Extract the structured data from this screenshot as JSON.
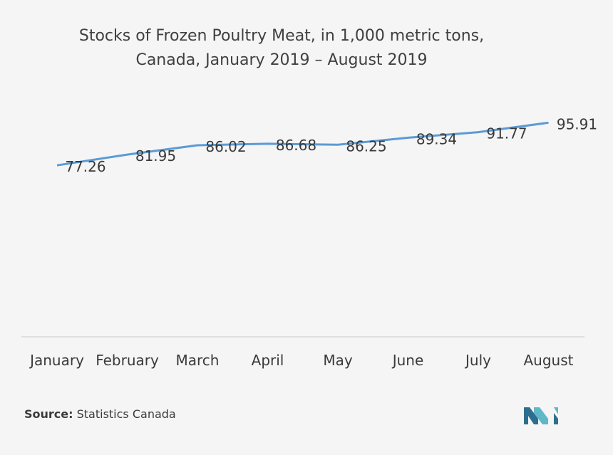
{
  "chart_data": {
    "type": "line",
    "title_line1": "Stocks of Frozen Poultry Meat, in  1,000 metric tons,",
    "title_line2": "Canada, January 2019 – August 2019",
    "categories": [
      "January",
      "February",
      "March",
      "April",
      "May",
      "June",
      "July",
      "August"
    ],
    "values": [
      77.26,
      81.95,
      86.02,
      86.68,
      86.25,
      89.34,
      91.77,
      95.91
    ],
    "value_labels": [
      "77.26",
      "81.95",
      "86.02",
      "86.68",
      "86.25",
      "89.34",
      "91.77",
      "95.91"
    ],
    "xlabel": "",
    "ylabel": "",
    "ylim": [
      0,
      100
    ],
    "grid": false,
    "legend": "none",
    "line_color": "#5b9bd5"
  },
  "source": {
    "label": "Source:",
    "text": " Statistics Canada"
  },
  "colors": {
    "background": "#f5f5f5",
    "axis": "#d8d8d8",
    "text": "#3a3a3a",
    "logo_dark": "#2d6e8e",
    "logo_light": "#5fb8c8"
  }
}
